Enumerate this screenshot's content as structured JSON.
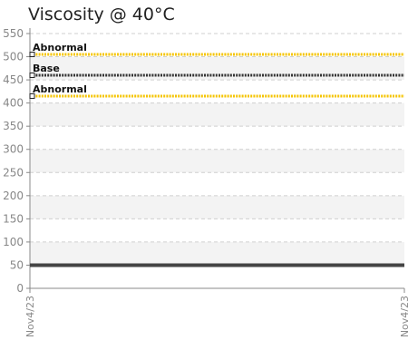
{
  "chart_data": {
    "type": "line",
    "title": "Viscosity @ 40°C",
    "xlabel": "",
    "ylabel": "",
    "ylim": [
      0,
      550
    ],
    "y_ticks": [
      0,
      50,
      100,
      150,
      200,
      250,
      300,
      350,
      400,
      450,
      500,
      550
    ],
    "x_ticks": [
      "Nov4/23",
      "Nov4/23"
    ],
    "grid": true,
    "series": [
      {
        "values": [
          50,
          50
        ]
      }
    ],
    "reference_lines": [
      {
        "label": "Abnormal",
        "value": 505,
        "color": "#f5c400",
        "style": "dotted"
      },
      {
        "label": "Base",
        "value": 460,
        "color": "#333333",
        "style": "dotted"
      },
      {
        "label": "Abnormal",
        "value": 415,
        "color": "#f5c400",
        "style": "dotted"
      }
    ],
    "colors": {
      "series": "#444444",
      "band": "#f3f3f3",
      "grid": "#cfcfcf",
      "axis": "#888888",
      "tick_text": "#888888"
    }
  }
}
